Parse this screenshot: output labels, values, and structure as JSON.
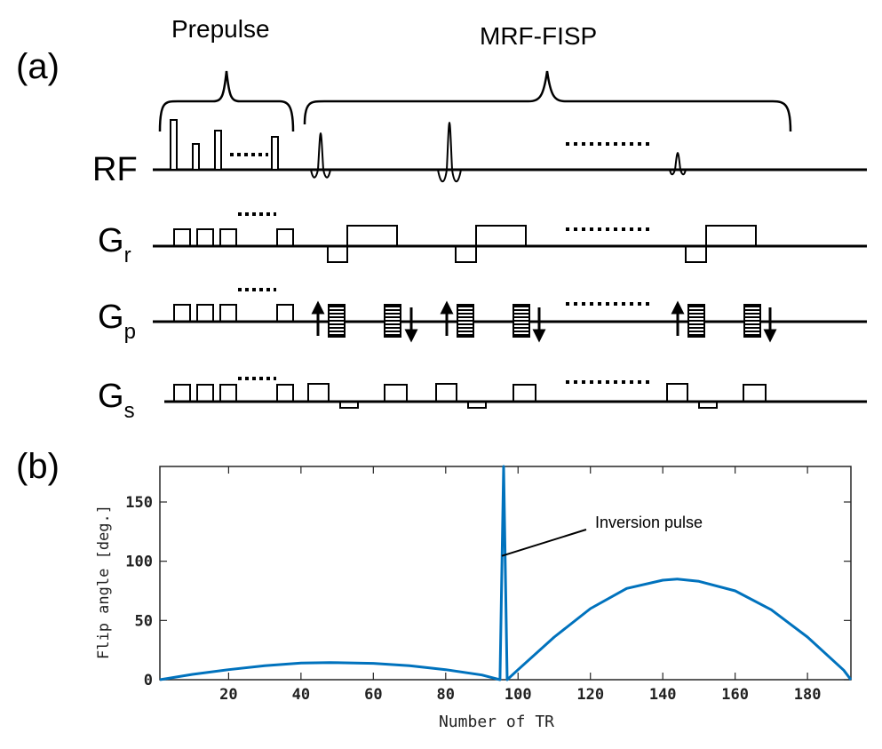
{
  "panel_a": {
    "label": "(a)",
    "prepulse_label": "Prepulse",
    "mrf_label": "MRF-FISP",
    "channels": {
      "rf": "RF",
      "gr": {
        "main": "G",
        "sub": "r"
      },
      "gp": {
        "main": "G",
        "sub": "p"
      },
      "gs": {
        "main": "G",
        "sub": "s"
      }
    }
  },
  "panel_b": {
    "label": "(b)",
    "annotation": "Inversion pulse"
  },
  "chart_data": {
    "type": "line",
    "title": "",
    "xlabel": "Number of TR",
    "ylabel": "Flip angle [deg.]",
    "xlim": [
      1,
      192
    ],
    "ylim": [
      0,
      180
    ],
    "xticks": [
      20,
      40,
      60,
      80,
      100,
      120,
      140,
      160,
      180
    ],
    "yticks": [
      0,
      50,
      100,
      150
    ],
    "color": "#0072BD",
    "series": [
      {
        "name": "flip angle",
        "x": [
          1,
          10,
          20,
          30,
          40,
          48,
          60,
          70,
          80,
          90,
          95,
          96,
          97,
          100,
          110,
          120,
          130,
          140,
          144,
          150,
          160,
          170,
          180,
          190,
          192
        ],
        "y": [
          0,
          4.5,
          8.5,
          11.8,
          14.0,
          14.5,
          13.8,
          11.8,
          8.5,
          4.0,
          0,
          180,
          0,
          8.5,
          36,
          60,
          77,
          84,
          85,
          83,
          75,
          59,
          36,
          8,
          0
        ]
      }
    ],
    "annotations": [
      {
        "text": "Inversion pulse",
        "x": 96,
        "y": 100
      }
    ]
  }
}
